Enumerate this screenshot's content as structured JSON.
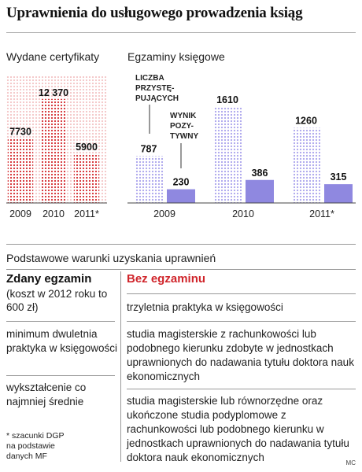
{
  "title": "Uprawnienia do usługowego prowadzenia ksiąg",
  "chart_data": [
    {
      "type": "bar",
      "title": "Wydane certyfikaty",
      "categories": [
        "2009",
        "2010",
        "2011*"
      ],
      "values": [
        7730,
        12370,
        5900
      ],
      "value_labels": [
        "7730",
        "12 370",
        "5900"
      ],
      "color": "#d42a2f"
    },
    {
      "type": "bar",
      "title": "Egzaminy księgowe",
      "categories": [
        "2009",
        "2010",
        "2011*"
      ],
      "series": [
        {
          "name": "LICZBA PRZYSTĘ-PUJĄCYCH",
          "values": [
            787,
            1610,
            1260
          ],
          "labels": [
            "787",
            "1610",
            "1260"
          ],
          "color": "#8f88e0"
        },
        {
          "name": "WYNIK POZY-TYWNY",
          "values": [
            230,
            386,
            315
          ],
          "labels": [
            "230",
            "386",
            "315"
          ],
          "color": "#8f88e0"
        }
      ],
      "annotations": [
        {
          "lines": [
            "LICZBA",
            "PRZYSTĘ-",
            "PUJĄCYCH"
          ]
        },
        {
          "lines": [
            "WYNIK",
            "POZY-",
            "TYWNY"
          ]
        }
      ]
    }
  ],
  "conditions": {
    "title": "Podstawowe warunki uzyskania uprawnień",
    "left_header": "Zdany egzamin",
    "left_note": "(koszt w 2012 roku to 600 zł)",
    "right_header": "Bez egzaminu",
    "left_items": [
      "minimum dwuletnia praktyka w księgowości",
      "wykształcenie co najmniej średnie"
    ],
    "right_items": [
      "trzyletnia praktyka w księgowości",
      "studia magisterskie z rachunkowości lub podobnego kierunku zdobyte w jednostkach uprawnionych do nadawania tytułu doktora nauk ekonomicznych",
      "studia magisterskie lub równorzędne oraz ukończone studia podyplomowe z rachunkowości lub podobnego kierunku w jednostkach uprawnionych do nadawania tytułu doktora nauk ekonomicznych"
    ]
  },
  "footnote": "* szacunki DGP na podstawie danych MF",
  "credit": "MC"
}
